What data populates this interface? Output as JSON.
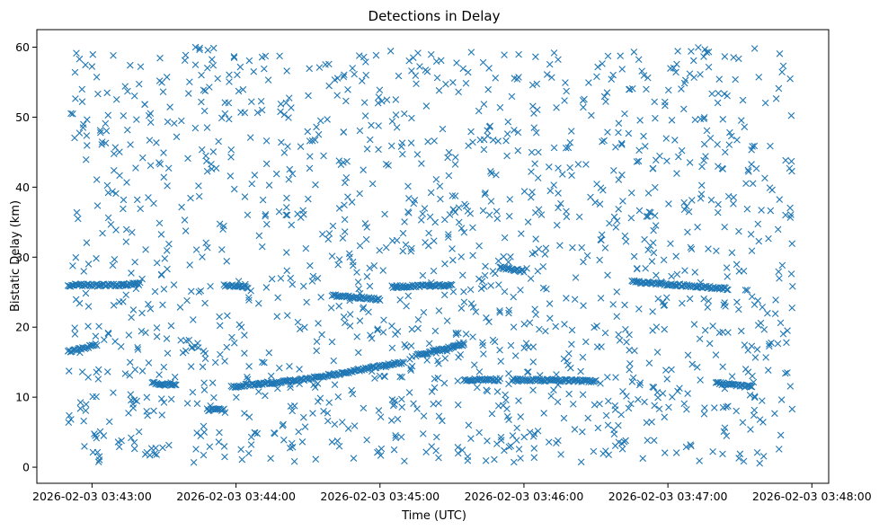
{
  "chart_data": {
    "type": "scatter",
    "title": "Detections in Delay",
    "xlabel": "Time (UTC)",
    "ylabel": "Bistatic Delay (km)",
    "marker": "x",
    "marker_color": "#1f77b4",
    "x_ticks": [
      "2026-02-03 03:43:00",
      "2026-02-03 03:44:00",
      "2026-02-03 03:45:00",
      "2026-02-03 03:46:00",
      "2026-02-03 03:47:00",
      "2026-02-03 03:48:00"
    ],
    "y_ticks": [
      0,
      10,
      20,
      30,
      40,
      50,
      60
    ],
    "xlim": [
      "2026-02-03 03:42:37",
      "2026-02-03 03:48:07"
    ],
    "ylim": [
      -2.3,
      62.5
    ],
    "grid": false,
    "data_extent": {
      "time_start": "2026-02-03 03:42:50",
      "time_end": "2026-02-03 03:47:52",
      "delay_min": 0.5,
      "delay_max": 60
    },
    "tracks": [
      {
        "points": [
          [
            "2026-02-03 03:42:50",
            26.0
          ],
          [
            "2026-02-03 03:43:10",
            26.0
          ],
          [
            "2026-02-03 03:43:20",
            26.2
          ]
        ]
      },
      {
        "points": [
          [
            "2026-02-03 03:42:50",
            16.5
          ],
          [
            "2026-02-03 03:43:02",
            17.5
          ]
        ]
      },
      {
        "points": [
          [
            "2026-02-03 03:43:25",
            12.0
          ],
          [
            "2026-02-03 03:43:35",
            11.7
          ]
        ]
      },
      {
        "points": [
          [
            "2026-02-03 03:43:55",
            26.0
          ],
          [
            "2026-02-03 03:44:05",
            25.7
          ]
        ]
      },
      {
        "points": [
          [
            "2026-02-03 03:43:48",
            8.2
          ],
          [
            "2026-02-03 03:43:55",
            8.2
          ]
        ]
      },
      {
        "points": [
          [
            "2026-02-03 03:43:58",
            11.5
          ],
          [
            "2026-02-03 03:44:30",
            12.6
          ],
          [
            "2026-02-03 03:45:10",
            15.0
          ]
        ]
      },
      {
        "points": [
          [
            "2026-02-03 03:45:15",
            16.0
          ],
          [
            "2026-02-03 03:45:35",
            17.5
          ]
        ]
      },
      {
        "points": [
          [
            "2026-02-03 03:44:40",
            24.5
          ],
          [
            "2026-02-03 03:45:00",
            24.0
          ]
        ]
      },
      {
        "points": [
          [
            "2026-02-03 03:45:05",
            25.8
          ],
          [
            "2026-02-03 03:45:30",
            26.0
          ]
        ]
      },
      {
        "points": [
          [
            "2026-02-03 03:45:35",
            12.5
          ],
          [
            "2026-02-03 03:45:50",
            12.5
          ]
        ]
      },
      {
        "points": [
          [
            "2026-02-03 03:45:50",
            28.5
          ],
          [
            "2026-02-03 03:46:00",
            28.0
          ]
        ]
      },
      {
        "points": [
          [
            "2026-02-03 03:45:55",
            12.5
          ],
          [
            "2026-02-03 03:46:30",
            12.3
          ]
        ]
      },
      {
        "points": [
          [
            "2026-02-03 03:46:45",
            26.5
          ],
          [
            "2026-02-03 03:47:25",
            25.5
          ]
        ]
      },
      {
        "points": [
          [
            "2026-02-03 03:47:20",
            12.0
          ],
          [
            "2026-02-03 03:47:35",
            11.5
          ]
        ]
      }
    ]
  }
}
